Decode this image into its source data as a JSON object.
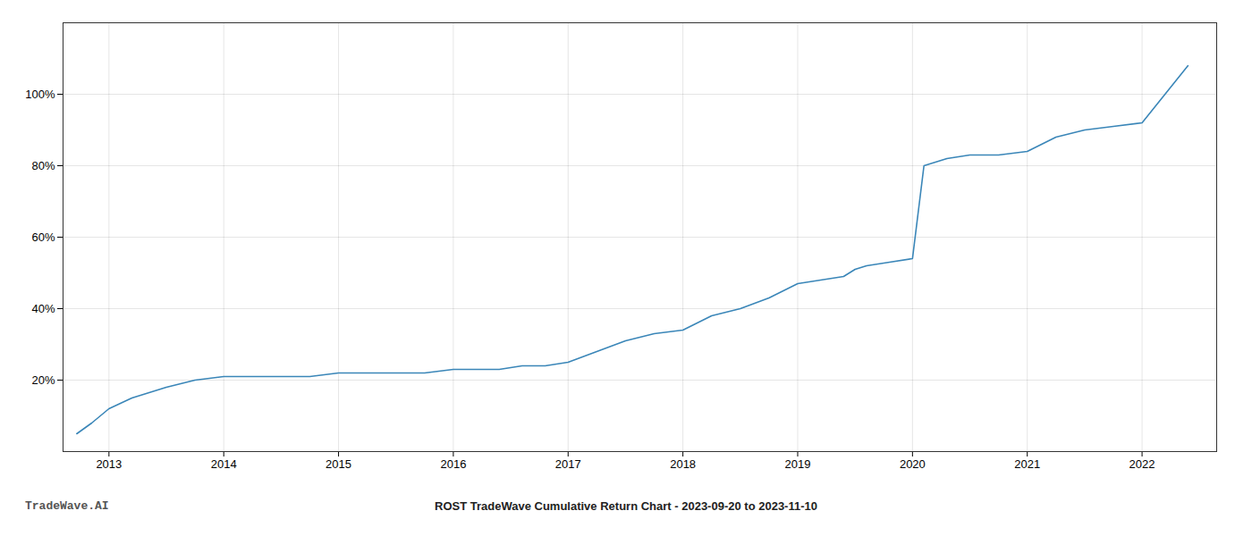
{
  "chart_data": {
    "type": "line",
    "title": "ROST TradeWave Cumulative Return Chart - 2023-09-20 to 2023-11-10",
    "annotations": [
      "TradeWave.AI"
    ],
    "color": "#3a86b8",
    "grid": true,
    "x": [
      2012.72,
      2012.85,
      2013.0,
      2013.2,
      2013.5,
      2013.75,
      2014.0,
      2014.2,
      2014.5,
      2014.75,
      2015.0,
      2015.25,
      2015.5,
      2015.75,
      2016.0,
      2016.2,
      2016.4,
      2016.6,
      2016.8,
      2017.0,
      2017.25,
      2017.5,
      2017.75,
      2018.0,
      2018.25,
      2018.5,
      2018.75,
      2019.0,
      2019.2,
      2019.4,
      2019.5,
      2019.6,
      2019.8,
      2020.0,
      2020.1,
      2020.3,
      2020.5,
      2020.75,
      2021.0,
      2021.25,
      2021.5,
      2021.75,
      2022.0,
      2022.2,
      2022.4
    ],
    "values": [
      5,
      8,
      12,
      15,
      18,
      20,
      21,
      21,
      21,
      21,
      22,
      22,
      22,
      22,
      23,
      23,
      23,
      24,
      24,
      25,
      28,
      31,
      33,
      34,
      38,
      40,
      43,
      47,
      48,
      49,
      51,
      52,
      53,
      54,
      80,
      82,
      83,
      83,
      84,
      88,
      90,
      91,
      92,
      100,
      108
    ],
    "xlim": [
      2012.6,
      2022.65
    ],
    "xticks": [
      2013,
      2014,
      2015,
      2016,
      2017,
      2018,
      2019,
      2020,
      2021,
      2022
    ],
    "ylim": [
      0,
      120
    ],
    "yticks": [
      {
        "value": 20,
        "label": "20%"
      },
      {
        "value": 40,
        "label": "40%"
      },
      {
        "value": 60,
        "label": "60%"
      },
      {
        "value": 80,
        "label": "80%"
      },
      {
        "value": 100,
        "label": "100%"
      }
    ]
  }
}
